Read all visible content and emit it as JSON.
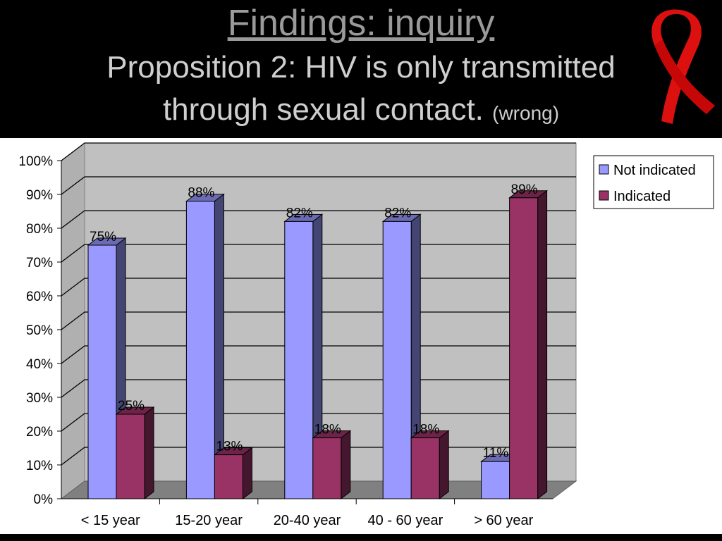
{
  "slide": {
    "title_line1": "Findings: inquiry",
    "title_line2": "Proposition 2: HIV is only transmitted",
    "title_line3": "through sexual contact.",
    "title_suffix": "(wrong)"
  },
  "icons": {
    "ribbon": "red-ribbon-icon"
  },
  "chart_data": {
    "type": "bar",
    "style": "3d-clustered-column",
    "categories": [
      "< 15 year",
      "15-20 year",
      "20-40 year",
      "40 - 60 year",
      "> 60 year"
    ],
    "series": [
      {
        "name": "Not indicated",
        "values": [
          75,
          88,
          82,
          82,
          11
        ],
        "labels": [
          "75%",
          "88%",
          "82%",
          "82%",
          "11%"
        ],
        "color": "#9999ff"
      },
      {
        "name": "Indicated",
        "values": [
          25,
          13,
          18,
          18,
          89
        ],
        "labels": [
          "25%",
          "13%",
          "18%",
          "18%",
          "89%"
        ],
        "color": "#993366"
      }
    ],
    "title": "",
    "xlabel": "",
    "ylabel": "",
    "ylim": [
      0,
      100
    ],
    "yticks": [
      "0%",
      "10%",
      "20%",
      "30%",
      "40%",
      "50%",
      "60%",
      "70%",
      "80%",
      "90%",
      "100%"
    ],
    "grid": true,
    "legend": "top-right",
    "wall_color": "#c0c0c0",
    "floor_color": "#808080"
  }
}
